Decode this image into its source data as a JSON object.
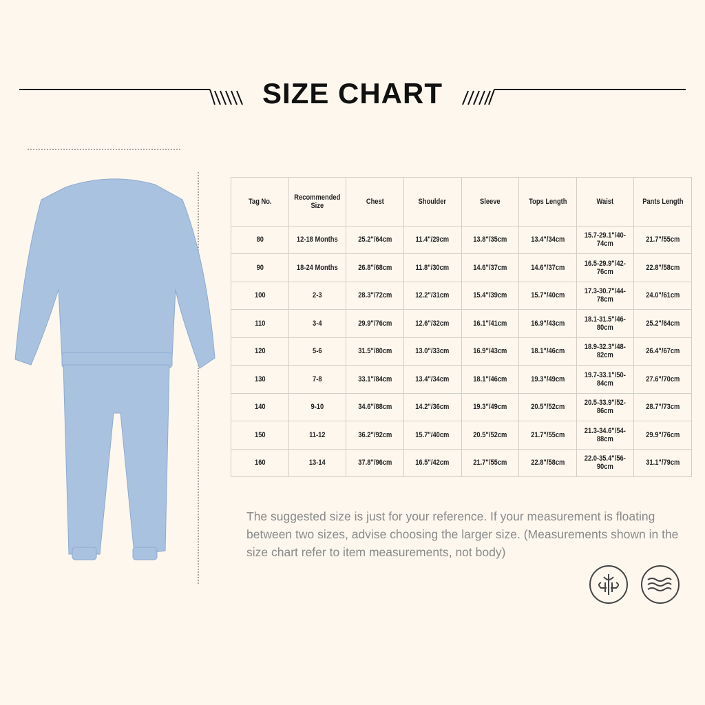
{
  "title": "SIZE CHART",
  "table": {
    "headers": [
      "Tag No.",
      "Recommended Size",
      "Chest",
      "Shoulder",
      "Sleeve",
      "Tops Length",
      "Waist",
      "Pants Length"
    ],
    "rows": [
      [
        "80",
        "12-18 Months",
        "25.2\"/64cm",
        "11.4\"/29cm",
        "13.8\"/35cm",
        "13.4\"/34cm",
        "15.7-29.1\"/40-74cm",
        "21.7\"/55cm"
      ],
      [
        "90",
        "18-24 Months",
        "26.8\"/68cm",
        "11.8\"/30cm",
        "14.6\"/37cm",
        "14.6\"/37cm",
        "16.5-29.9\"/42-76cm",
        "22.8\"/58cm"
      ],
      [
        "100",
        "2-3",
        "28.3\"/72cm",
        "12.2\"/31cm",
        "15.4\"/39cm",
        "15.7\"/40cm",
        "17.3-30.7\"/44-78cm",
        "24.0\"/61cm"
      ],
      [
        "110",
        "3-4",
        "29.9\"/76cm",
        "12.6\"/32cm",
        "16.1\"/41cm",
        "16.9\"/43cm",
        "18.1-31.5\"/46-80cm",
        "25.2\"/64cm"
      ],
      [
        "120",
        "5-6",
        "31.5\"/80cm",
        "13.0\"/33cm",
        "16.9\"/43cm",
        "18.1\"/46cm",
        "18.9-32.3\"/48-82cm",
        "26.4\"/67cm"
      ],
      [
        "130",
        "7-8",
        "33.1\"/84cm",
        "13.4\"/34cm",
        "18.1\"/46cm",
        "19.3\"/49cm",
        "19.7-33.1\"/50-84cm",
        "27.6\"/70cm"
      ],
      [
        "140",
        "9-10",
        "34.6\"/88cm",
        "14.2\"/36cm",
        "19.3\"/49cm",
        "20.5\"/52cm",
        "20.5-33.9\"/52-86cm",
        "28.7\"/73cm"
      ],
      [
        "150",
        "11-12",
        "36.2\"/92cm",
        "15.7\"/40cm",
        "20.5\"/52cm",
        "21.7\"/55cm",
        "21.3-34.6\"/54-88cm",
        "29.9\"/76cm"
      ],
      [
        "160",
        "13-14",
        "37.8\"/96cm",
        "16.5\"/42cm",
        "21.7\"/55cm",
        "22.8\"/58cm",
        "22.0-35.4\"/56-90cm",
        "31.1\"/79cm"
      ]
    ]
  },
  "note": "The suggested size is just for your reference. If your measurement is floating between two sizes, advise choosing the larger size. (Measurements shown in the size chart refer to item measurements, not body)",
  "icons": [
    "fleece-icon",
    "soft-wave-icon"
  ],
  "colors": {
    "background": "#fdf7ee",
    "garment": "#a9c2e0"
  }
}
